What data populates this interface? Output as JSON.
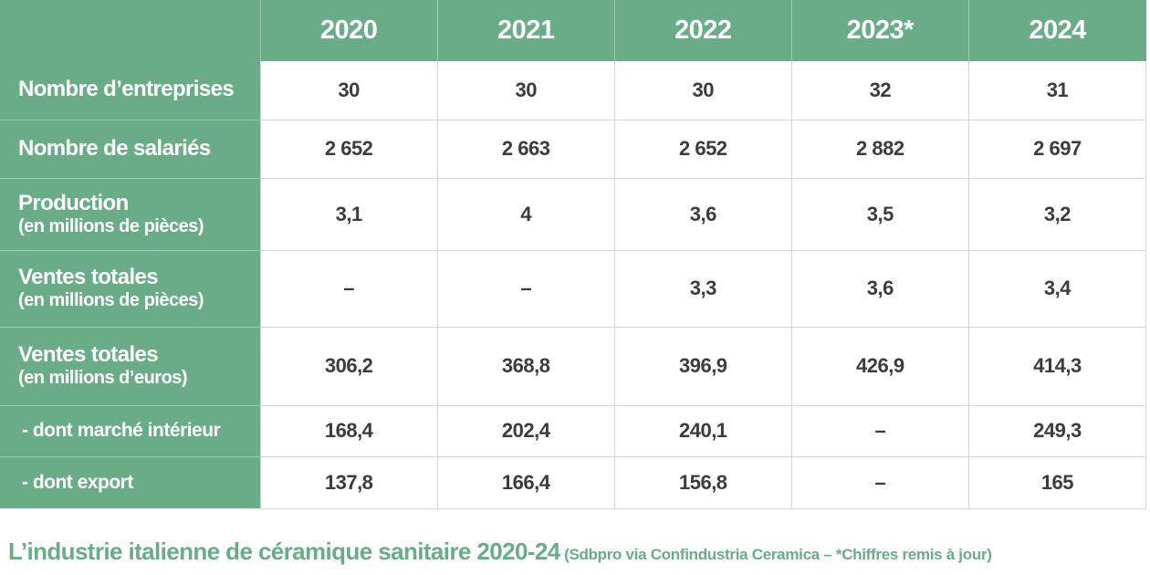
{
  "chart_data": {
    "type": "table",
    "columns": [
      "2020",
      "2021",
      "2022",
      "2023*",
      "2024"
    ],
    "rows": [
      {
        "label": "Nombre d’entreprises",
        "sublabel": "",
        "values": [
          "30",
          "30",
          "30",
          "32",
          "31"
        ]
      },
      {
        "label": "Nombre de salariés",
        "sublabel": "",
        "values": [
          "2 652",
          "2 663",
          "2 652",
          "2 882",
          "2 697"
        ]
      },
      {
        "label": "Production",
        "sublabel": "(en millions de pièces)",
        "values": [
          "3,1",
          "4",
          "3,6",
          "3,5",
          "3,2"
        ]
      },
      {
        "label": "Ventes totales",
        "sublabel": "(en millions de pièces)",
        "values": [
          "–",
          "–",
          "3,3",
          "3,6",
          "3,4"
        ]
      },
      {
        "label": "Ventes totales",
        "sublabel": "(en millions d’euros)",
        "values": [
          "306,2",
          "368,8",
          "396,9",
          "426,9",
          "414,3"
        ]
      },
      {
        "label": " - dont marché intérieur",
        "sublabel": "",
        "values": [
          "168,4",
          "202,4",
          "240,1",
          "–",
          "249,3"
        ]
      },
      {
        "label": " - dont export",
        "sublabel": "",
        "values": [
          "137,8",
          "166,4",
          "156,8",
          "–",
          "165"
        ]
      }
    ],
    "title": "L’industrie italienne de céramique sanitaire 2020-24",
    "source_note": "(Sdbpro via Confindustria Ceramica – *Chiffres remis à jour)"
  },
  "colors": {
    "header_bg": "#6aab88",
    "header_text": "#ffffff",
    "cell_text": "#3c3c3c",
    "grid": "#d4d4d4",
    "caption": "#6aab88"
  }
}
